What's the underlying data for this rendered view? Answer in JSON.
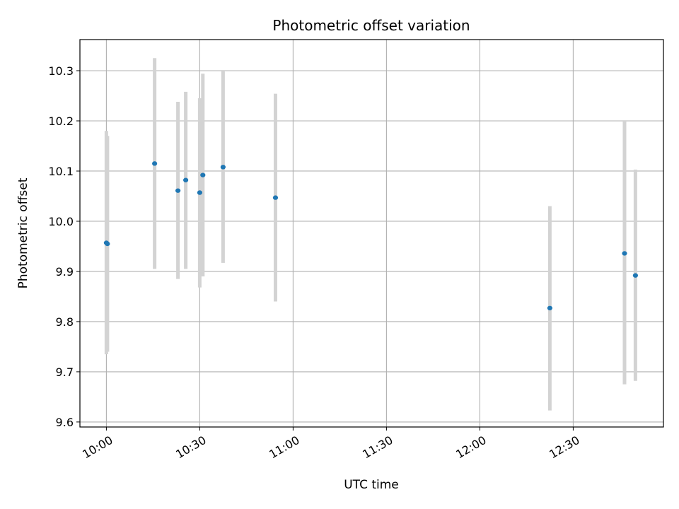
{
  "chart_data": {
    "type": "scatter",
    "title": "Photometric offset variation",
    "xlabel": "UTC time",
    "ylabel": "Photometric offset",
    "x_unit": "UTC time (HH:MM)",
    "xlim": [
      "09:51:30",
      "12:59:00"
    ],
    "ylim": [
      9.59,
      10.362
    ],
    "grid": true,
    "x_ticks": [
      "10:00",
      "10:30",
      "11:00",
      "11:30",
      "12:00",
      "12:30"
    ],
    "y_ticks": [
      "9.6",
      "9.7",
      "9.8",
      "9.9",
      "10.0",
      "10.1",
      "10.2",
      "10.3"
    ],
    "colors": {
      "point": "#1f77b4",
      "errorbar": "#d3d3d3",
      "grid": "#b0b0b0"
    },
    "points": [
      {
        "x": "10:00:00",
        "y": 9.957,
        "yerr_low": 9.735,
        "yerr_high": 10.18
      },
      {
        "x": "10:00:20",
        "y": 9.955,
        "yerr_low": 9.74,
        "yerr_high": 10.17
      },
      {
        "x": "10:15:30",
        "y": 10.115,
        "yerr_low": 9.905,
        "yerr_high": 10.325
      },
      {
        "x": "10:23:00",
        "y": 10.061,
        "yerr_low": 9.885,
        "yerr_high": 10.238
      },
      {
        "x": "10:25:30",
        "y": 10.082,
        "yerr_low": 9.905,
        "yerr_high": 10.258
      },
      {
        "x": "10:30:00",
        "y": 10.057,
        "yerr_low": 9.868,
        "yerr_high": 10.245
      },
      {
        "x": "10:31:00",
        "y": 10.092,
        "yerr_low": 9.89,
        "yerr_high": 10.294
      },
      {
        "x": "10:37:30",
        "y": 10.108,
        "yerr_low": 9.917,
        "yerr_high": 10.3
      },
      {
        "x": "10:54:20",
        "y": 10.047,
        "yerr_low": 9.84,
        "yerr_high": 10.254
      },
      {
        "x": "12:22:30",
        "y": 9.827,
        "yerr_low": 9.623,
        "yerr_high": 10.03
      },
      {
        "x": "12:46:30",
        "y": 9.936,
        "yerr_low": 9.675,
        "yerr_high": 10.2
      },
      {
        "x": "12:50:00",
        "y": 9.892,
        "yerr_low": 9.682,
        "yerr_high": 10.103
      }
    ]
  }
}
